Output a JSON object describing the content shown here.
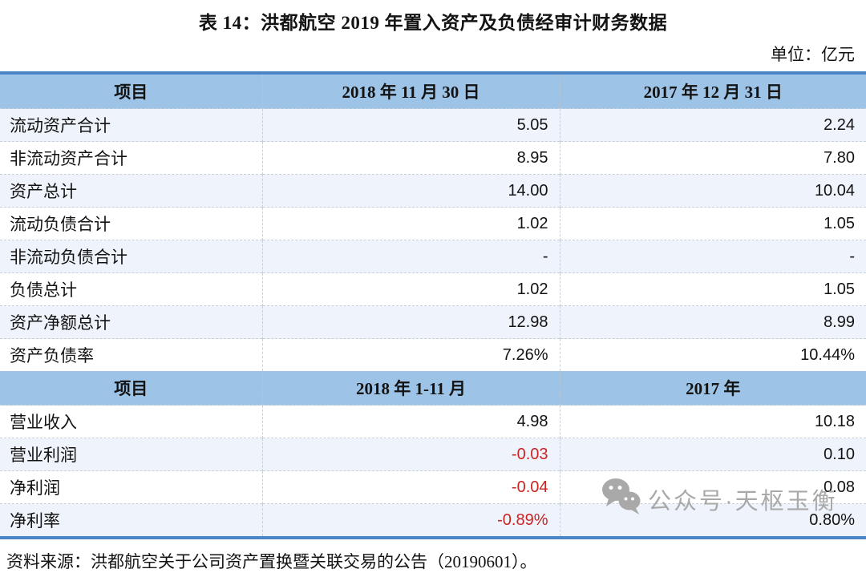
{
  "title": "表 14：洪都航空 2019 年置入资产及负债经审计财务数据",
  "unit_label": "单位：亿元",
  "sections": [
    {
      "headers": [
        "项目",
        "2018 年 11 月 30 日",
        "2017 年 12 月 31 日"
      ],
      "rows": [
        {
          "item": "流动资产合计",
          "values": [
            "5.05",
            "2.24"
          ]
        },
        {
          "item": "非流动资产合计",
          "values": [
            "8.95",
            "7.80"
          ]
        },
        {
          "item": "资产总计",
          "values": [
            "14.00",
            "10.04"
          ]
        },
        {
          "item": "流动负债合计",
          "values": [
            "1.02",
            "1.05"
          ]
        },
        {
          "item": "非流动负债合计",
          "values": [
            "-",
            "-"
          ]
        },
        {
          "item": "负债总计",
          "values": [
            "1.02",
            "1.05"
          ]
        },
        {
          "item": "资产净额总计",
          "values": [
            "12.98",
            "8.99"
          ]
        },
        {
          "item": "资产负债率",
          "values": [
            "7.26%",
            "10.44%"
          ]
        }
      ]
    },
    {
      "headers": [
        "项目",
        "2018 年 1-11 月",
        "2017 年"
      ],
      "rows": [
        {
          "item": "营业收入",
          "values": [
            "4.98",
            "10.18"
          ]
        },
        {
          "item": "营业利润",
          "values": [
            "-0.03",
            "0.10"
          ]
        },
        {
          "item": "净利润",
          "values": [
            "-0.04",
            "0.08"
          ]
        },
        {
          "item": "净利率",
          "values": [
            "-0.89%",
            "0.80%"
          ]
        }
      ]
    }
  ],
  "source_note": "资料来源：洪都航空关于公司资产置换暨关联交易的公告（20190601）。",
  "watermark": {
    "icon": "wechat-icon",
    "text": "公众号·天枢玉衡"
  },
  "colors": {
    "header_bg": "#9dc3e6",
    "row_shaded_bg": "#eff3fb",
    "table_border": "#4a86c6",
    "negative_value": "#cc2222",
    "watermark_gray": "#a9a9a9"
  }
}
